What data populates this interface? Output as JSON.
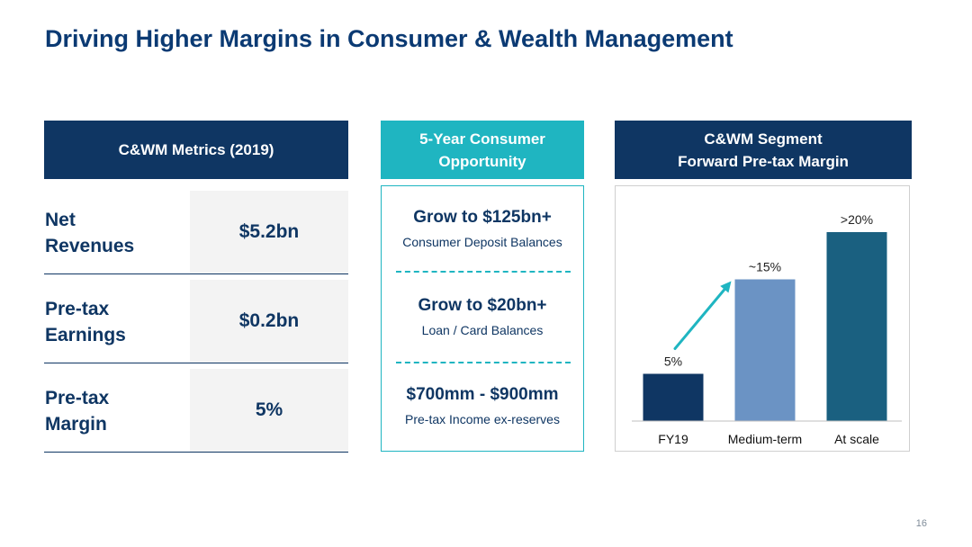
{
  "title": "Driving Higher Margins in Consumer & Wealth Management",
  "metrics": {
    "header": "C&WM Metrics (2019)",
    "rows": [
      {
        "label_line1": "Net",
        "label_line2": "Revenues",
        "value": "$5.2bn"
      },
      {
        "label_line1": "Pre-tax",
        "label_line2": "Earnings",
        "value": "$0.2bn"
      },
      {
        "label_line1": "Pre-tax",
        "label_line2": "Margin",
        "value": "5%"
      }
    ]
  },
  "opportunity": {
    "header_line1": "5-Year Consumer",
    "header_line2": "Opportunity",
    "items": [
      {
        "headline": "Grow to $125bn+",
        "sub": "Consumer Deposit Balances"
      },
      {
        "headline": "Grow to $20bn+",
        "sub": "Loan / Card Balances"
      },
      {
        "headline": "$700mm - $900mm",
        "sub": "Pre-tax Income ex-reserves"
      }
    ]
  },
  "chart_header": {
    "line1": "C&WM Segment",
    "line2": "Forward Pre-tax Margin"
  },
  "chart_data": {
    "type": "bar",
    "categories": [
      "FY19",
      "Medium-term",
      "At scale"
    ],
    "values": [
      5,
      15,
      20
    ],
    "data_labels": [
      "5%",
      "~15%",
      ">20%"
    ],
    "colors": [
      "#0f3663",
      "#6b93c4",
      "#1a6080"
    ],
    "arrow_color": "#1fb5c1",
    "ylim": [
      0,
      22
    ],
    "grid": false,
    "title": "",
    "xlabel": "",
    "ylabel": ""
  },
  "page_number": "16"
}
